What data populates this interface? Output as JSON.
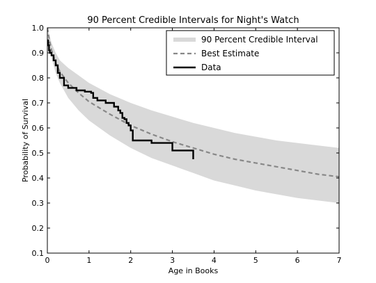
{
  "chart_data": {
    "type": "line",
    "title": "90 Percent Credible Intervals for Night's Watch",
    "xlabel": "Age in Books",
    "ylabel": "Probability of Survival",
    "xlim": [
      0,
      7
    ],
    "ylim": [
      0.1,
      1.0
    ],
    "xticks": [
      "0",
      "1",
      "2",
      "3",
      "4",
      "5",
      "6",
      "7"
    ],
    "yticks": [
      "0.1",
      "0.2",
      "0.3",
      "0.4",
      "0.5",
      "0.6",
      "0.7",
      "0.8",
      "0.9",
      "1.0"
    ],
    "grid": false,
    "legend_position": "top-right",
    "series": [
      {
        "name": "90 Percent Credible Interval",
        "style": "band",
        "color": "#d9d9d9",
        "x": [
          0,
          0.05,
          0.1,
          0.2,
          0.3,
          0.5,
          0.75,
          1.0,
          1.5,
          2.0,
          2.5,
          3.0,
          3.5,
          4.0,
          4.5,
          5.0,
          5.5,
          6.0,
          6.5,
          7.0
        ],
        "upper": [
          1.0,
          0.97,
          0.94,
          0.9,
          0.87,
          0.84,
          0.81,
          0.78,
          0.735,
          0.7,
          0.67,
          0.645,
          0.62,
          0.6,
          0.58,
          0.565,
          0.55,
          0.54,
          0.53,
          0.52
        ],
        "lower": [
          1.0,
          0.92,
          0.88,
          0.82,
          0.78,
          0.72,
          0.67,
          0.63,
          0.57,
          0.52,
          0.48,
          0.45,
          0.42,
          0.39,
          0.37,
          0.35,
          0.335,
          0.32,
          0.31,
          0.3
        ]
      },
      {
        "name": "Best Estimate",
        "style": "dashed",
        "color": "#888888",
        "x": [
          0,
          0.05,
          0.1,
          0.2,
          0.3,
          0.5,
          0.75,
          1.0,
          1.5,
          2.0,
          2.5,
          3.0,
          3.5,
          4.0,
          4.5,
          5.0,
          5.5,
          6.0,
          6.5,
          7.0
        ],
        "y": [
          1.0,
          0.95,
          0.91,
          0.86,
          0.825,
          0.78,
          0.74,
          0.705,
          0.655,
          0.61,
          0.575,
          0.545,
          0.52,
          0.495,
          0.475,
          0.46,
          0.445,
          0.43,
          0.415,
          0.405
        ]
      },
      {
        "name": "Data",
        "style": "step",
        "color": "#000000",
        "x": [
          0,
          0.02,
          0.04,
          0.06,
          0.1,
          0.15,
          0.2,
          0.25,
          0.3,
          0.4,
          0.5,
          0.7,
          0.9,
          1.05,
          1.1,
          1.2,
          1.4,
          1.6,
          1.7,
          1.75,
          1.8,
          1.85,
          1.9,
          1.95,
          2.0,
          2.05,
          2.5,
          3.0,
          3.5
        ],
        "y": [
          0.95,
          0.93,
          0.91,
          0.9,
          0.89,
          0.87,
          0.85,
          0.82,
          0.8,
          0.77,
          0.76,
          0.75,
          0.745,
          0.74,
          0.72,
          0.71,
          0.7,
          0.685,
          0.67,
          0.66,
          0.64,
          0.635,
          0.62,
          0.61,
          0.59,
          0.55,
          0.54,
          0.51,
          0.49
        ],
        "end_drop_to": 0.475
      }
    ]
  }
}
